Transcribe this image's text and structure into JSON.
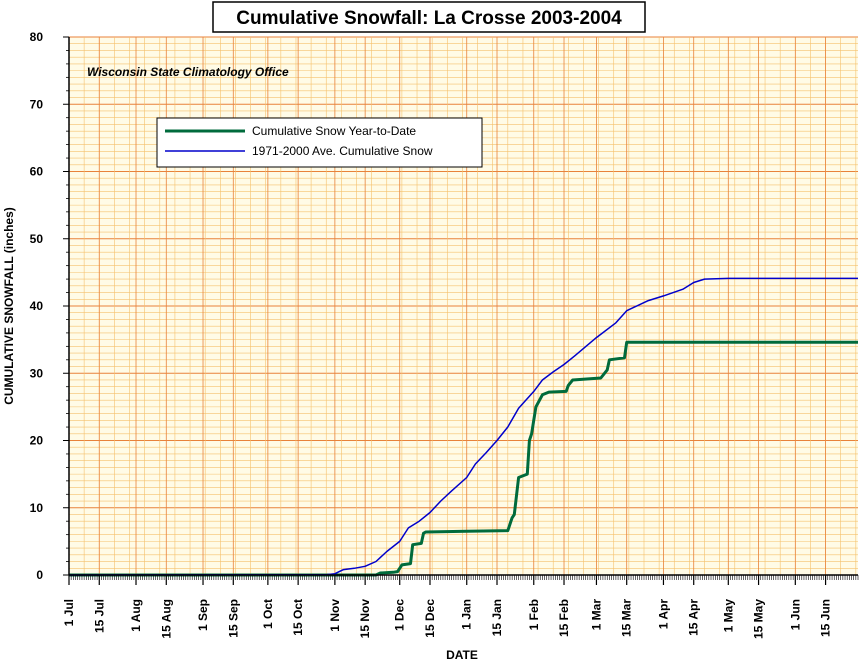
{
  "chart_data": {
    "type": "line",
    "title": "Cumulative Snowfall: La Crosse 2003-2004",
    "annotation": "Wisconsin State Climatology Office",
    "xlabel": "DATE",
    "ylabel": "CUMULATIVE SNOWFALL (inches)",
    "ylim": [
      0,
      80
    ],
    "yticks": [
      0,
      10,
      20,
      30,
      40,
      50,
      60,
      70,
      80
    ],
    "xlim": [
      "2003-07-01",
      "2004-06-30"
    ],
    "xtick_labels": [
      "1 Jul",
      "15 Jul",
      "1 Aug",
      "15 Aug",
      "1 Sep",
      "15 Sep",
      "1 Oct",
      "15 Oct",
      "1 Nov",
      "15 Nov",
      "1 Dec",
      "15 Dec",
      "1 Jan",
      "15 Jan",
      "1 Feb",
      "15 Feb",
      "1 Mar",
      "15 Mar",
      "1 Apr",
      "15 Apr",
      "1 May",
      "15 May",
      "1 Jun",
      "15 Jun"
    ],
    "xtick_dates": [
      "2003-07-01",
      "2003-07-15",
      "2003-08-01",
      "2003-08-15",
      "2003-09-01",
      "2003-09-15",
      "2003-10-01",
      "2003-10-15",
      "2003-11-01",
      "2003-11-15",
      "2003-12-01",
      "2003-12-15",
      "2004-01-01",
      "2004-01-15",
      "2004-02-01",
      "2004-02-15",
      "2004-03-01",
      "2004-03-15",
      "2004-04-01",
      "2004-04-15",
      "2004-05-01",
      "2004-05-15",
      "2004-06-01",
      "2004-06-15"
    ],
    "grid": true,
    "legend_position": "top-left",
    "background_color": "#fffbe6",
    "grid_color": "#f5c16c",
    "major_grid_color": "#e8823a",
    "series": [
      {
        "name": "Cumulative Snow Year-to-Date",
        "color": "#006b3c",
        "line_style": "thick",
        "points": [
          [
            "2003-07-01",
            0
          ],
          [
            "2003-11-20",
            0
          ],
          [
            "2003-11-22",
            0.3
          ],
          [
            "2003-11-28",
            0.4
          ],
          [
            "2003-11-30",
            0.5
          ],
          [
            "2003-12-02",
            1.5
          ],
          [
            "2003-12-06",
            1.7
          ],
          [
            "2003-12-07",
            4.5
          ],
          [
            "2003-12-11",
            4.7
          ],
          [
            "2003-12-12",
            6.2
          ],
          [
            "2003-12-13",
            6.4
          ],
          [
            "2004-01-01",
            6.5
          ],
          [
            "2004-01-20",
            6.6
          ],
          [
            "2004-01-22",
            8.5
          ],
          [
            "2004-01-23",
            9.0
          ],
          [
            "2004-01-25",
            14.5
          ],
          [
            "2004-01-29",
            15.0
          ],
          [
            "2004-01-30",
            20.0
          ],
          [
            "2004-01-31",
            21.0
          ],
          [
            "2004-02-02",
            25.0
          ],
          [
            "2004-02-05",
            26.8
          ],
          [
            "2004-02-08",
            27.2
          ],
          [
            "2004-02-16",
            27.3
          ],
          [
            "2004-02-17",
            28.2
          ],
          [
            "2004-02-19",
            29.0
          ],
          [
            "2004-03-03",
            29.3
          ],
          [
            "2004-03-06",
            30.5
          ],
          [
            "2004-03-07",
            32.0
          ],
          [
            "2004-03-14",
            32.3
          ],
          [
            "2004-03-15",
            34.6
          ],
          [
            "2004-06-30",
            34.6
          ]
        ]
      },
      {
        "name": "1971-2000 Ave. Cumulative Snow",
        "color": "#0000cc",
        "line_style": "thin",
        "points": [
          [
            "2003-07-01",
            0
          ],
          [
            "2003-10-28",
            0.05
          ],
          [
            "2003-11-01",
            0.2
          ],
          [
            "2003-11-05",
            0.8
          ],
          [
            "2003-11-10",
            1.0
          ],
          [
            "2003-11-15",
            1.3
          ],
          [
            "2003-11-20",
            2.0
          ],
          [
            "2003-11-25",
            3.5
          ],
          [
            "2003-12-01",
            5.0
          ],
          [
            "2003-12-05",
            7.0
          ],
          [
            "2003-12-10",
            8.0
          ],
          [
            "2003-12-15",
            9.3
          ],
          [
            "2003-12-20",
            11.0
          ],
          [
            "2003-12-25",
            12.5
          ],
          [
            "2004-01-01",
            14.5
          ],
          [
            "2004-01-05",
            16.5
          ],
          [
            "2004-01-10",
            18.2
          ],
          [
            "2004-01-15",
            20.0
          ],
          [
            "2004-01-20",
            22.0
          ],
          [
            "2004-01-25",
            24.8
          ],
          [
            "2004-02-01",
            27.3
          ],
          [
            "2004-02-05",
            29.0
          ],
          [
            "2004-02-10",
            30.2
          ],
          [
            "2004-02-15",
            31.3
          ],
          [
            "2004-02-20",
            32.6
          ],
          [
            "2004-03-01",
            35.3
          ],
          [
            "2004-03-10",
            37.5
          ],
          [
            "2004-03-15",
            39.3
          ],
          [
            "2004-03-25",
            40.8
          ],
          [
            "2004-04-01",
            41.5
          ],
          [
            "2004-04-10",
            42.5
          ],
          [
            "2004-04-15",
            43.5
          ],
          [
            "2004-04-20",
            44.0
          ],
          [
            "2004-05-01",
            44.1
          ],
          [
            "2004-06-30",
            44.1
          ]
        ]
      }
    ]
  }
}
